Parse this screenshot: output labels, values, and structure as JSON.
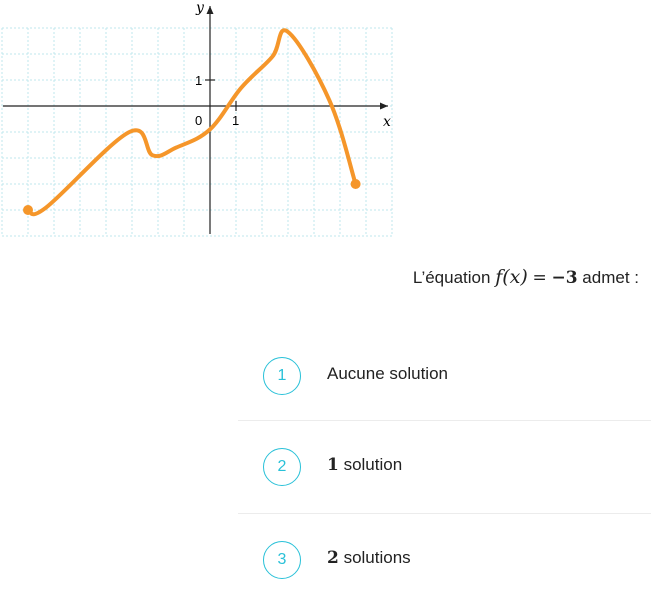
{
  "graph": {
    "x_axis_label": "x",
    "y_axis_label": "y",
    "origin_label": "0",
    "x_tick_label": "1",
    "y_tick_label": "1",
    "curve_color": "#f5962a",
    "grid_color": "#bfe7ee",
    "axis_color": "#222222"
  },
  "chart_data": {
    "type": "line",
    "xlim": [
      -8,
      7
    ],
    "ylim": [
      -5,
      3
    ],
    "grid": true,
    "x": [
      -7,
      -6.3,
      -3.1,
      -2.2,
      -1.3,
      0,
      1.2,
      2.4,
      3,
      4.6,
      5.6
    ],
    "y": [
      -4,
      -3.9,
      -1,
      -1.9,
      -1.6,
      -0.9,
      0.7,
      1.9,
      2.85,
      0.2,
      -3
    ],
    "endpoints": [
      {
        "x": -7,
        "y": -4
      },
      {
        "x": 5.6,
        "y": -3
      }
    ]
  },
  "question": {
    "prefix": "L’équation",
    "fx": "f(x)",
    "equals": "=",
    "value": "−3",
    "suffix": "admet :"
  },
  "options": [
    {
      "number": "1",
      "count": "",
      "label": "Aucune solution"
    },
    {
      "number": "2",
      "count": "1",
      "label": "solution"
    },
    {
      "number": "3",
      "count": "2",
      "label": "solutions"
    }
  ]
}
